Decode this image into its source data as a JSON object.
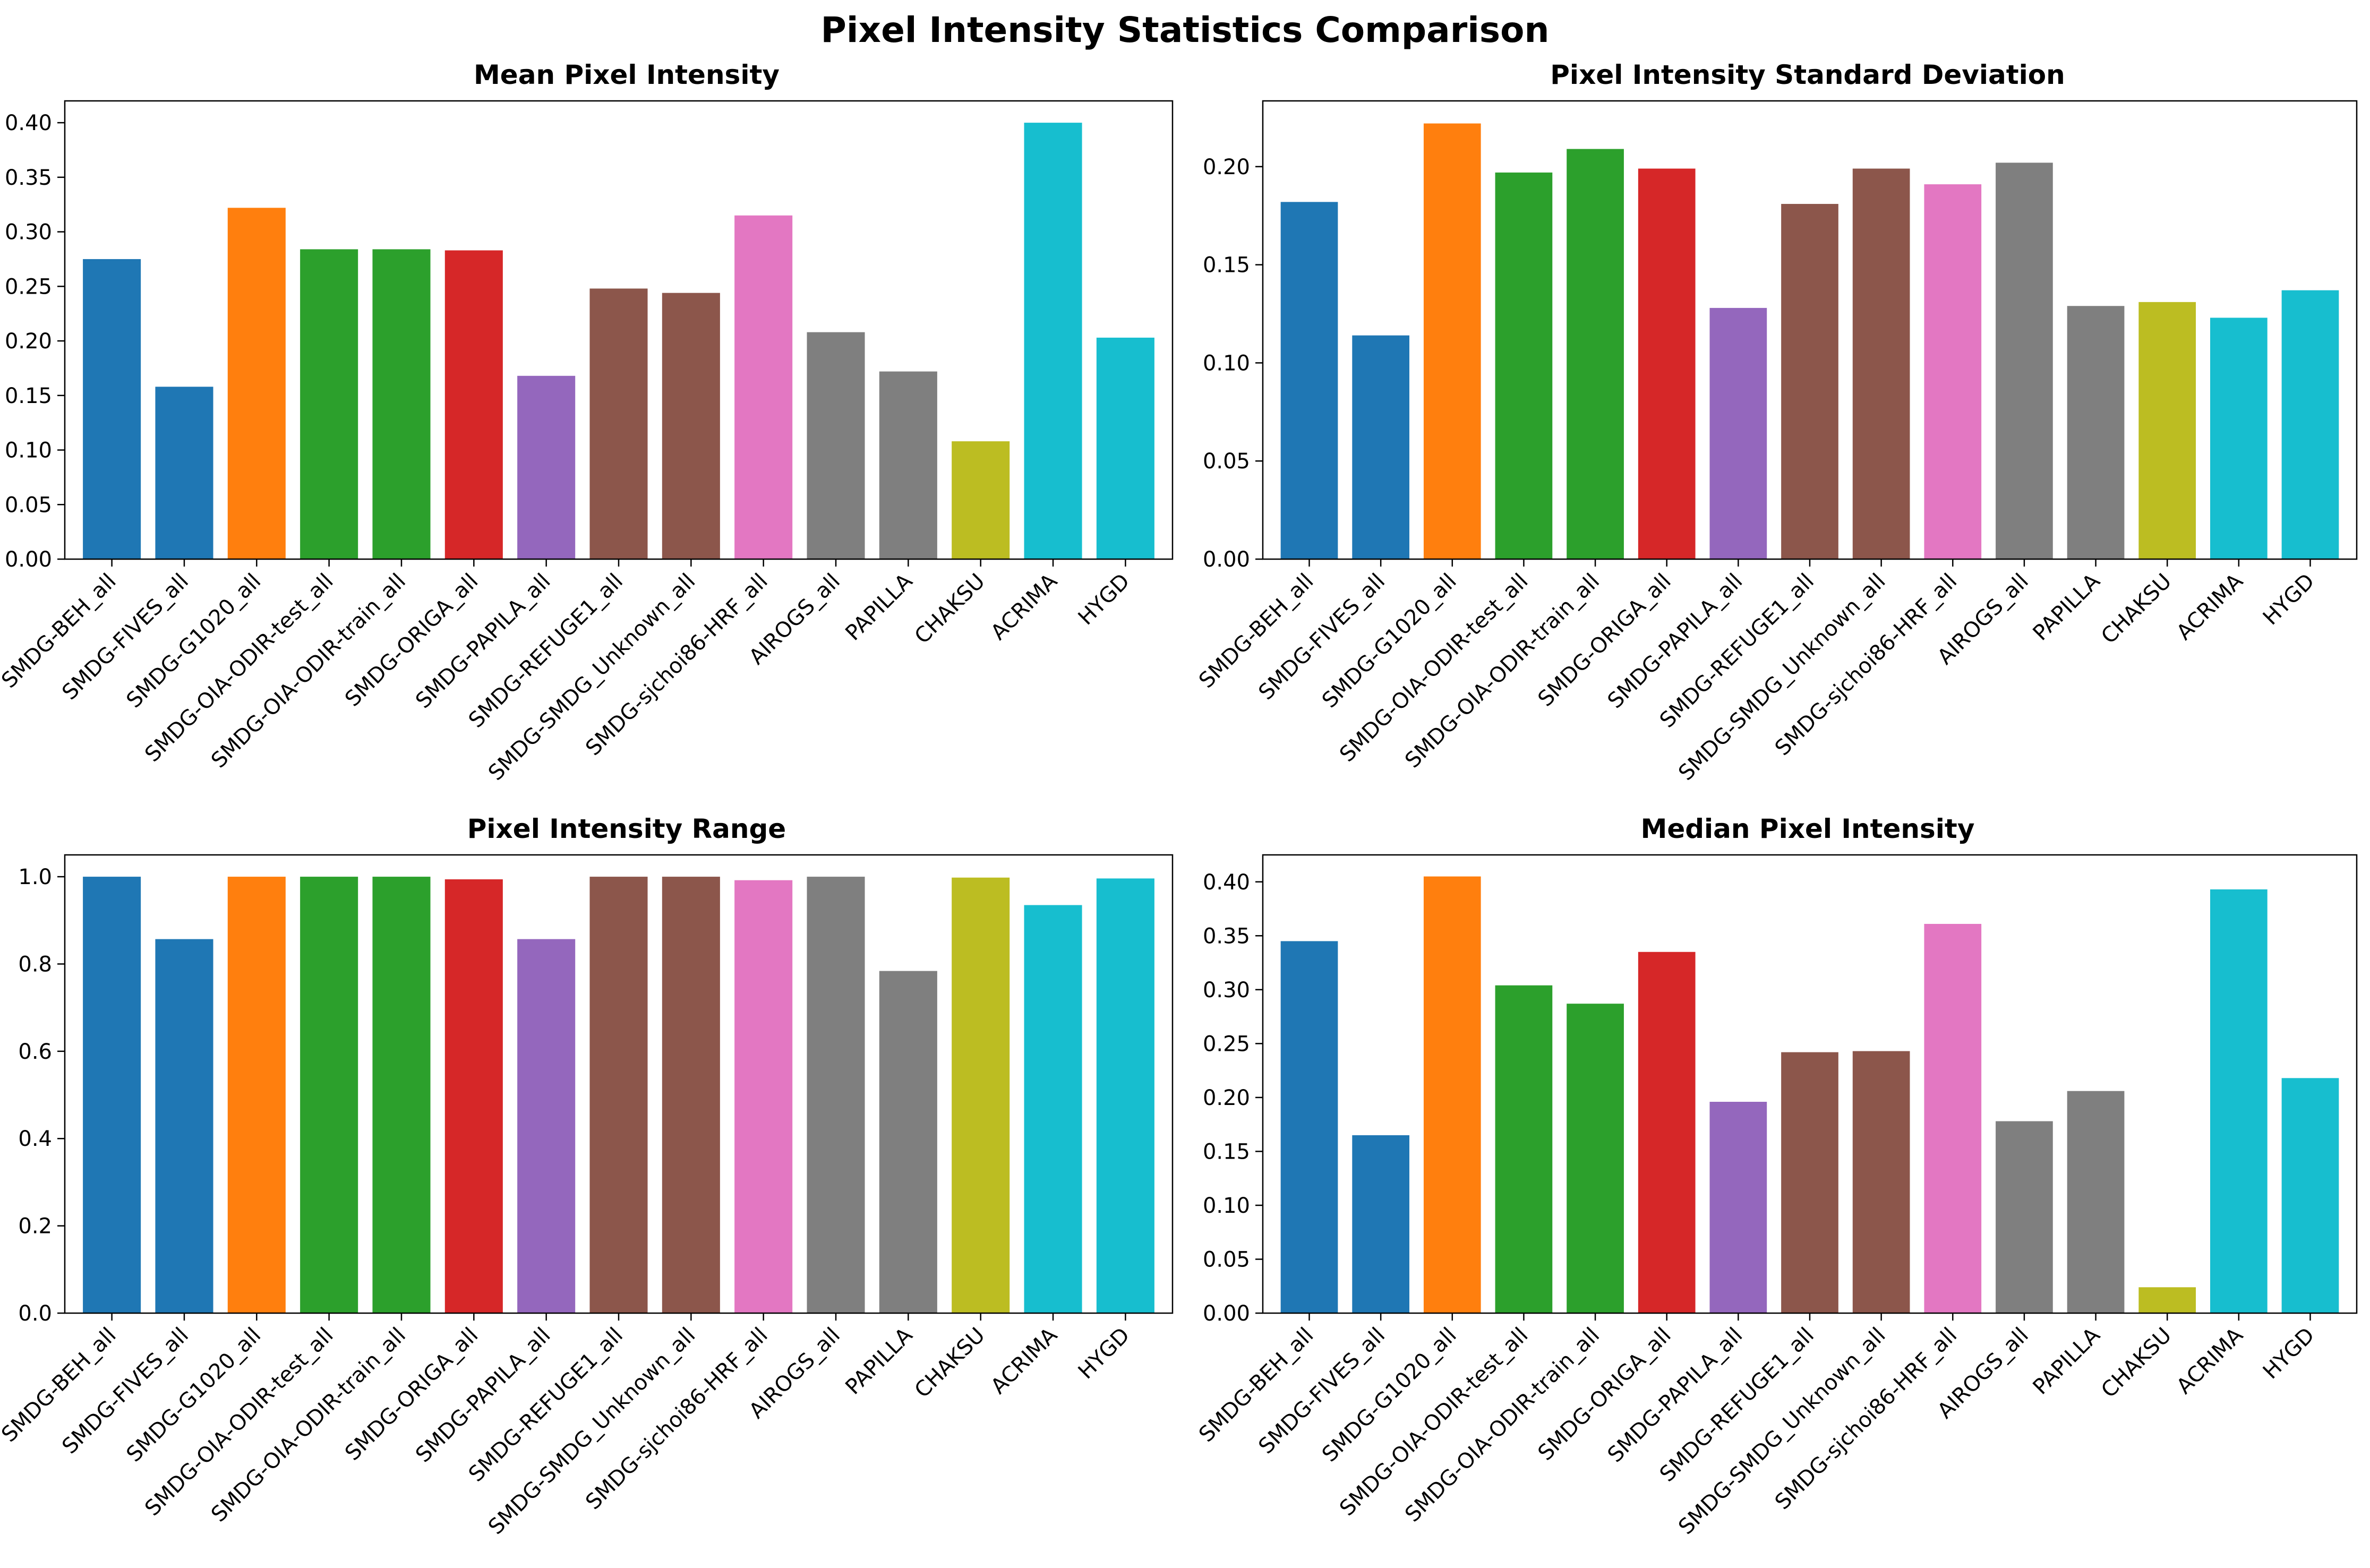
{
  "title": "Pixel Intensity Statistics Comparison",
  "chart_data": [
    {
      "type": "bar",
      "title": "Mean Pixel Intensity",
      "xlabel": "",
      "ylabel": "",
      "ylim": [
        0,
        0.42
      ],
      "yticks": [
        "0.00",
        "0.05",
        "0.10",
        "0.15",
        "0.20",
        "0.25",
        "0.30",
        "0.35",
        "0.40"
      ],
      "categories": [
        "SMDG-BEH_all",
        "SMDG-FIVES_all",
        "SMDG-G1020_all",
        "SMDG-OIA-ODIR-test_all",
        "SMDG-OIA-ODIR-train_all",
        "SMDG-ORIGA_all",
        "SMDG-PAPILA_all",
        "SMDG-REFUGE1_all",
        "SMDG-SMDG_Unknown_all",
        "SMDG-sjchoi86-HRF_all",
        "AIROGS_all",
        "PAPILLA",
        "CHAKSU",
        "ACRIMA",
        "HYGD"
      ],
      "values": [
        0.275,
        0.158,
        0.322,
        0.284,
        0.284,
        0.283,
        0.168,
        0.248,
        0.244,
        0.315,
        0.208,
        0.172,
        0.108,
        0.4,
        0.203
      ],
      "colors": [
        "#1f77b4",
        "#1f77b4",
        "#ff7f0e",
        "#2ca02c",
        "#2ca02c",
        "#d62728",
        "#9467bd",
        "#8c564b",
        "#8c564b",
        "#e377c2",
        "#7f7f7f",
        "#7f7f7f",
        "#bcbd22",
        "#17becf",
        "#17becf"
      ],
      "grid": false
    },
    {
      "type": "bar",
      "title": "Pixel Intensity Standard Deviation",
      "xlabel": "",
      "ylabel": "",
      "ylim": [
        0,
        0.2335
      ],
      "yticks": [
        "0.00",
        "0.05",
        "0.10",
        "0.15",
        "0.20"
      ],
      "categories": [
        "SMDG-BEH_all",
        "SMDG-FIVES_all",
        "SMDG-G1020_all",
        "SMDG-OIA-ODIR-test_all",
        "SMDG-OIA-ODIR-train_all",
        "SMDG-ORIGA_all",
        "SMDG-PAPILA_all",
        "SMDG-REFUGE1_all",
        "SMDG-SMDG_Unknown_all",
        "SMDG-sjchoi86-HRF_all",
        "AIROGS_all",
        "PAPILLA",
        "CHAKSU",
        "ACRIMA",
        "HYGD"
      ],
      "values": [
        0.182,
        0.114,
        0.222,
        0.197,
        0.209,
        0.199,
        0.128,
        0.181,
        0.199,
        0.191,
        0.202,
        0.129,
        0.131,
        0.123,
        0.137
      ],
      "colors": [
        "#1f77b4",
        "#1f77b4",
        "#ff7f0e",
        "#2ca02c",
        "#2ca02c",
        "#d62728",
        "#9467bd",
        "#8c564b",
        "#8c564b",
        "#e377c2",
        "#7f7f7f",
        "#7f7f7f",
        "#bcbd22",
        "#17becf",
        "#17becf"
      ],
      "grid": false
    },
    {
      "type": "bar",
      "title": "Pixel Intensity Range",
      "xlabel": "",
      "ylabel": "",
      "ylim": [
        0,
        1.05
      ],
      "yticks": [
        "0.0",
        "0.2",
        "0.4",
        "0.6",
        "0.8",
        "1.0"
      ],
      "categories": [
        "SMDG-BEH_all",
        "SMDG-FIVES_all",
        "SMDG-G1020_all",
        "SMDG-OIA-ODIR-test_all",
        "SMDG-OIA-ODIR-train_all",
        "SMDG-ORIGA_all",
        "SMDG-PAPILA_all",
        "SMDG-REFUGE1_all",
        "SMDG-SMDG_Unknown_all",
        "SMDG-sjchoi86-HRF_all",
        "AIROGS_all",
        "PAPILLA",
        "CHAKSU",
        "ACRIMA",
        "HYGD"
      ],
      "values": [
        1.0,
        0.857,
        1.0,
        1.0,
        1.0,
        0.994,
        0.857,
        1.0,
        1.0,
        0.992,
        1.0,
        0.784,
        0.998,
        0.935,
        0.996
      ],
      "colors": [
        "#1f77b4",
        "#1f77b4",
        "#ff7f0e",
        "#2ca02c",
        "#2ca02c",
        "#d62728",
        "#9467bd",
        "#8c564b",
        "#8c564b",
        "#e377c2",
        "#7f7f7f",
        "#7f7f7f",
        "#bcbd22",
        "#17becf",
        "#17becf"
      ],
      "grid": false
    },
    {
      "type": "bar",
      "title": "Median Pixel Intensity",
      "xlabel": "",
      "ylabel": "",
      "ylim": [
        0,
        0.425
      ],
      "yticks": [
        "0.00",
        "0.05",
        "0.10",
        "0.15",
        "0.20",
        "0.25",
        "0.30",
        "0.35",
        "0.40"
      ],
      "categories": [
        "SMDG-BEH_all",
        "SMDG-FIVES_all",
        "SMDG-G1020_all",
        "SMDG-OIA-ODIR-test_all",
        "SMDG-OIA-ODIR-train_all",
        "SMDG-ORIGA_all",
        "SMDG-PAPILA_all",
        "SMDG-REFUGE1_all",
        "SMDG-SMDG_Unknown_all",
        "SMDG-sjchoi86-HRF_all",
        "AIROGS_all",
        "PAPILLA",
        "CHAKSU",
        "ACRIMA",
        "HYGD"
      ],
      "values": [
        0.345,
        0.165,
        0.405,
        0.304,
        0.287,
        0.335,
        0.196,
        0.242,
        0.243,
        0.361,
        0.178,
        0.206,
        0.024,
        0.393,
        0.218
      ],
      "colors": [
        "#1f77b4",
        "#1f77b4",
        "#ff7f0e",
        "#2ca02c",
        "#2ca02c",
        "#d62728",
        "#9467bd",
        "#8c564b",
        "#8c564b",
        "#e377c2",
        "#7f7f7f",
        "#7f7f7f",
        "#bcbd22",
        "#17becf",
        "#17becf"
      ],
      "grid": false
    }
  ]
}
